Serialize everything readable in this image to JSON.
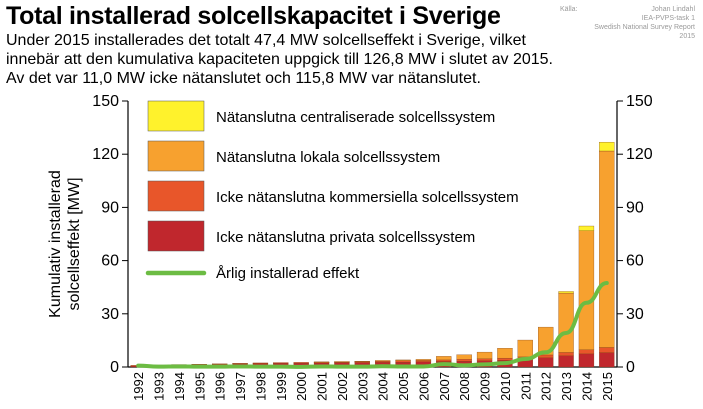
{
  "header": {
    "title": "Total installerad solcellskapacitet i Sverige",
    "subtitle": "Under 2015 installerades det totalt 47,4 MW solcellseffekt i Sverige, vilket innebär att den kumulativa kapaciteten uppgick till 126,8 MW i slutet av 2015. Av det var 11,0 MW icke nätanslutet och 115,8 MW var nätanslutet."
  },
  "source": {
    "label": "Källa:",
    "author": "Johan Lindahl",
    "line2": "IEA-PVPS-task 1",
    "line3": "Swedish National Survey Report",
    "line4": "2015"
  },
  "chart_data": {
    "type": "bar",
    "stacked": true,
    "title": "",
    "ylabel": "Kumulativ installerad solcellseffekt [MW]",
    "ylabel_lines": [
      "Kumulativ installerad",
      "solcellseffekt [MW]"
    ],
    "ylim": [
      0,
      150
    ],
    "yticks": [
      0,
      30,
      60,
      90,
      120,
      150
    ],
    "grid": false,
    "legend_position": "top-left",
    "categories": [
      "1992",
      "1993",
      "1994",
      "1995",
      "1996",
      "1997",
      "1998",
      "1999",
      "2000",
      "2001",
      "2002",
      "2003",
      "2004",
      "2005",
      "2006",
      "2007",
      "2008",
      "2009",
      "2010",
      "2011",
      "2012",
      "2013",
      "2014",
      "2015"
    ],
    "series": [
      {
        "name": "Icke nätanslutna privata solcellssystem",
        "kind": "bar",
        "color": "#c0272d",
        "values": [
          0.8,
          1.0,
          1.2,
          1.4,
          1.6,
          1.8,
          2.0,
          2.1,
          2.2,
          2.3,
          2.4,
          2.5,
          2.6,
          2.7,
          2.9,
          3.1,
          3.3,
          3.5,
          3.8,
          4.3,
          5.2,
          6.3,
          7.4,
          8.1
        ]
      },
      {
        "name": "Icke nätanslutna kommersiella solcellssystem",
        "kind": "bar",
        "color": "#e8562a",
        "values": [
          0.1,
          0.1,
          0.2,
          0.2,
          0.2,
          0.3,
          0.3,
          0.4,
          0.4,
          0.5,
          0.6,
          0.6,
          0.7,
          0.8,
          0.8,
          0.9,
          1.0,
          1.1,
          1.2,
          1.4,
          1.6,
          1.9,
          2.3,
          2.9
        ]
      },
      {
        "name": "Nätanslutna lokala solcellssystem",
        "kind": "bar",
        "color": "#f7a12f",
        "values": [
          0,
          0,
          0,
          0,
          0,
          0,
          0,
          0,
          0,
          0.1,
          0.1,
          0.2,
          0.4,
          0.5,
          0.6,
          2.0,
          2.6,
          3.8,
          5.6,
          9.5,
          15.7,
          33.5,
          67.1,
          110.8
        ]
      },
      {
        "name": "Nätanslutna centraliserade solcellssystem",
        "kind": "bar",
        "color": "#fff22c",
        "values": [
          0,
          0,
          0,
          0,
          0,
          0,
          0,
          0,
          0,
          0,
          0,
          0,
          0,
          0,
          0,
          0,
          0,
          0,
          0,
          0,
          0,
          0.9,
          2.7,
          5.0
        ]
      },
      {
        "name": "Årlig installerad effekt",
        "kind": "line",
        "color": "#6cbc43",
        "values": [
          0.8,
          0.2,
          0.3,
          0.2,
          0.2,
          0.3,
          0.2,
          0.2,
          0.1,
          0.3,
          0.2,
          0.2,
          0.4,
          0.3,
          0.3,
          1.6,
          0.9,
          1.5,
          2.2,
          4.5,
          8.3,
          19.2,
          36.2,
          47.4
        ]
      }
    ],
    "legend_order": [
      3,
      2,
      1,
      0,
      4
    ],
    "axis_color": "#000000"
  }
}
